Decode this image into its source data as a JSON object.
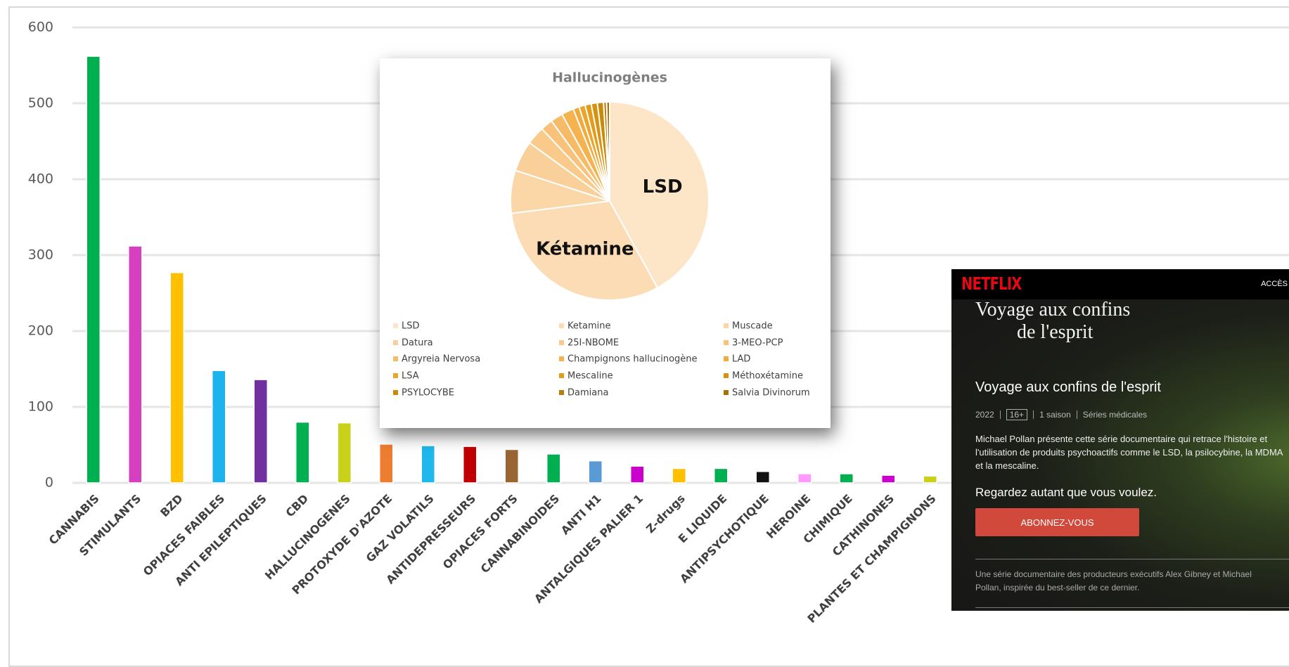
{
  "chart_data": [
    {
      "type": "bar",
      "categories": [
        "CANNABIS",
        "STIMULANTS",
        "BZD",
        "OPIACES FAIBLES",
        "ANTI EPILEPTIQUES",
        "CBD",
        "HALLUCINOGENES",
        "PROTOXYDE D'AZOTE",
        "GAZ VOLATILS",
        "ANTIDEPRESSEURS",
        "OPIACES FORTS",
        "CANNABINOIDES",
        "ANTI H1",
        "ANTALGIQUES PALIER 1",
        "Z-drugs",
        "E LIQUIDE",
        "ANTIPSYCHOTIQUE",
        "HEROINE",
        "CHIMIQUE",
        "CATHINONES",
        "PLANTES ET CHAMPIGNONS"
      ],
      "values": [
        562,
        312,
        277,
        148,
        136,
        80,
        79,
        51,
        49,
        48,
        44,
        38,
        29,
        22,
        19,
        19,
        15,
        12,
        12,
        10,
        9
      ],
      "colors": [
        "#00b050",
        "#d63fbf",
        "#ffc000",
        "#1db4ee",
        "#7030a0",
        "#00b050",
        "#c9d11a",
        "#ed7d31",
        "#1fb7ec",
        "#c00000",
        "#996633",
        "#00b050",
        "#5b9bd5",
        "#cc00cc",
        "#ffc000",
        "#00b050",
        "#111111",
        "#ff99ff",
        "#00b050",
        "#cc00cc",
        "#c9d11a"
      ],
      "ylim": [
        0,
        600
      ],
      "yticks": [
        0,
        100,
        200,
        300,
        400,
        500,
        600
      ],
      "grid": true
    },
    {
      "type": "pie",
      "title": "Hallucinogènes",
      "categories": [
        "LSD",
        "Ketamine",
        "Muscade",
        "Datura",
        "25I-NBOME",
        "3-MEO-PCP",
        "Argyreia Nervosa",
        "Champignons hallucinogène",
        "LAD",
        "LSA",
        "Mescaline",
        "Méthoxétamine",
        "PSYLOCYBE",
        "Damiana",
        "Salvia Divinorum"
      ],
      "values": [
        42,
        31,
        7,
        5,
        3,
        2,
        2,
        2,
        1,
        1,
        1,
        1,
        1,
        0.5,
        0.5
      ],
      "colors": [
        "#fde5c8",
        "#fcdcb4",
        "#fbd6a6",
        "#fad09a",
        "#f9ca8a",
        "#f8c27a",
        "#f6bb66",
        "#f4b34f",
        "#f1ab3c",
        "#eca42a",
        "#e39b1a",
        "#d89212",
        "#c98a0c",
        "#b87e0a",
        "#a67208"
      ],
      "data_labels": [
        "LSD",
        "Kétamine",
        null,
        null,
        null,
        null,
        null,
        null,
        null,
        null,
        null,
        null,
        null,
        null,
        null
      ]
    }
  ],
  "netflix": {
    "brand": "NETFLIX",
    "nav": "ACCÈS",
    "logo_lines": [
      "Voyage aux confins",
      "de l'esprit"
    ],
    "title": "Voyage aux confins de l'esprit",
    "meta": [
      "2022",
      "16+",
      "1 saison",
      "Séries médicales"
    ],
    "description": "Michael Pollan présente cette série documentaire qui retrace l'histoire et l'utilisation de produits psychoactifs comme le LSD, la psilocybine, la MDMA et la mescaline.",
    "tagline": "Regardez autant que vous voulez.",
    "button": "ABONNEZ-VOUS",
    "footer": "Une série documentaire des producteurs exécutifs Alex Gibney et Michael Pollan, inspirée du best-seller de ce dernier."
  }
}
